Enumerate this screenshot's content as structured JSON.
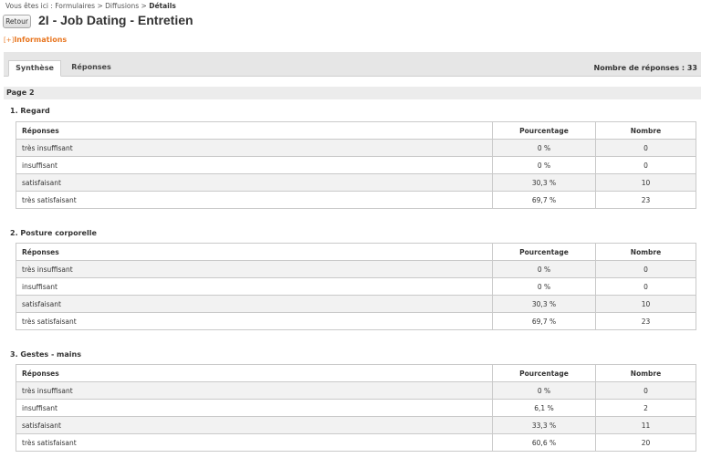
{
  "breadcrumb": {
    "prefix": "Vous êtes ici : Formulaires > Diffusions > ",
    "current": "Détails"
  },
  "header": {
    "back_label": "Retour",
    "title": "2I - Job Dating - Entretien"
  },
  "info_toggle": {
    "bracket": "[+]",
    "label": "Informations"
  },
  "tabs": [
    {
      "label": "Synthèse",
      "active": true
    },
    {
      "label": "Réponses",
      "active": false
    }
  ],
  "responses_count": "Nombre de réponses : 33",
  "page_label": "Page 2",
  "table_headers": {
    "reponses": "Réponses",
    "pourcentage": "Pourcentage",
    "nombre": "Nombre"
  },
  "questions": [
    {
      "title": "1. Regard",
      "rows": [
        {
          "label": "très insuffisant",
          "percent": "0 %",
          "count": "0"
        },
        {
          "label": "insuffisant",
          "percent": "0 %",
          "count": "0"
        },
        {
          "label": "satisfaisant",
          "percent": "30,3 %",
          "count": "10"
        },
        {
          "label": "très satisfaisant",
          "percent": "69,7 %",
          "count": "23"
        }
      ]
    },
    {
      "title": "2. Posture corporelle",
      "rows": [
        {
          "label": "très insuffisant",
          "percent": "0 %",
          "count": "0"
        },
        {
          "label": "insuffisant",
          "percent": "0 %",
          "count": "0"
        },
        {
          "label": "satisfaisant",
          "percent": "30,3 %",
          "count": "10"
        },
        {
          "label": "très satisfaisant",
          "percent": "69,7 %",
          "count": "23"
        }
      ]
    },
    {
      "title": "3. Gestes - mains",
      "rows": [
        {
          "label": "très insuffisant",
          "percent": "0 %",
          "count": "0"
        },
        {
          "label": "insuffisant",
          "percent": "6,1 %",
          "count": "2"
        },
        {
          "label": "satisfaisant",
          "percent": "33,3 %",
          "count": "11"
        },
        {
          "label": "très satisfaisant",
          "percent": "60,6 %",
          "count": "20"
        }
      ]
    }
  ]
}
